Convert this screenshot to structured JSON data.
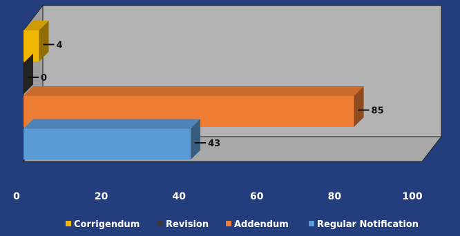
{
  "chart_data": {
    "type": "bar",
    "orientation": "horizontal",
    "style": "3d",
    "categories": [
      "Corrigendum",
      "Revision",
      "Addendum",
      "Regular Notification"
    ],
    "values": [
      4,
      0,
      85,
      43
    ],
    "colors": [
      "#f2b705",
      "#3a3a3a",
      "#ee7d33",
      "#5b9bd5"
    ],
    "xlim": [
      0,
      100
    ],
    "xticks": [
      "0",
      "20",
      "40",
      "60",
      "80",
      "100"
    ],
    "data_labels": [
      "4",
      "0",
      "85",
      "43"
    ],
    "legend": {
      "placement": "bottom",
      "items": [
        "Corrigendum",
        "Revision",
        "Addendum",
        "Regular Notification"
      ]
    },
    "gridlines": false,
    "background": "#243d7c",
    "plot_wall_color": "#b3b3b3"
  }
}
